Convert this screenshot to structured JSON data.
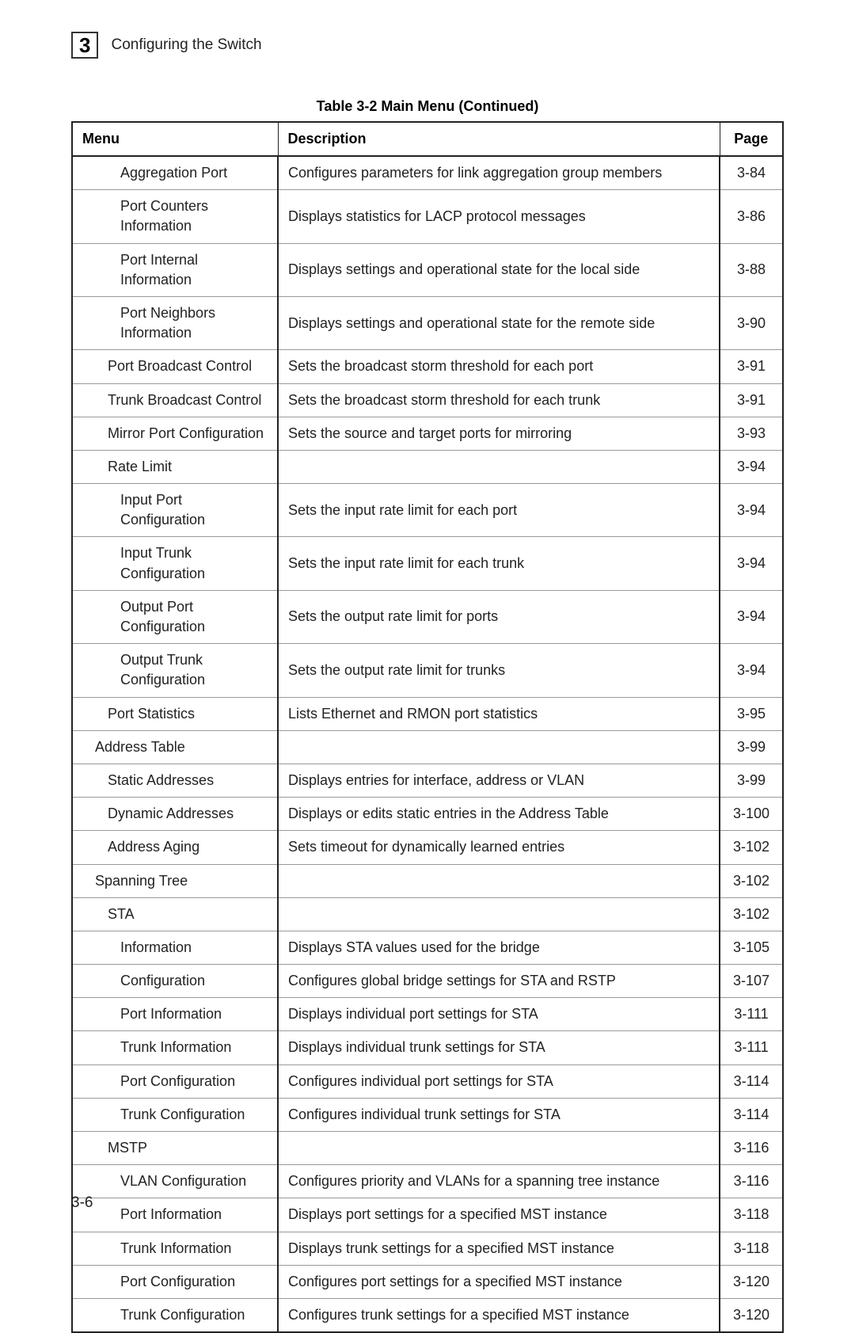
{
  "header": {
    "chapter_number": "3",
    "title": "Configuring the Switch"
  },
  "table": {
    "caption": "Table 3-2  Main Menu (Continued)",
    "columns": {
      "menu": "Menu",
      "description": "Description",
      "page": "Page"
    },
    "rows": [
      {
        "menu": "Aggregation Port",
        "indent": 3,
        "description": "Configures parameters for link aggregation group members",
        "page": "3-84"
      },
      {
        "menu": "Port Counters Information",
        "indent": 3,
        "description": "Displays statistics for LACP protocol messages",
        "page": "3-86"
      },
      {
        "menu": "Port Internal Information",
        "indent": 3,
        "description": "Displays settings and operational state for the local side",
        "page": "3-88"
      },
      {
        "menu": "Port Neighbors Information",
        "indent": 3,
        "description": "Displays settings and operational state for the remote side",
        "page": "3-90"
      },
      {
        "menu": "Port Broadcast Control",
        "indent": 2,
        "description": "Sets the broadcast storm threshold for each port",
        "page": "3-91"
      },
      {
        "menu": "Trunk Broadcast Control",
        "indent": 2,
        "description": "Sets the broadcast storm threshold for each trunk",
        "page": "3-91"
      },
      {
        "menu": "Mirror Port Configuration",
        "indent": 2,
        "description": "Sets the source and target ports for mirroring",
        "page": "3-93"
      },
      {
        "menu": "Rate Limit",
        "indent": 2,
        "description": "",
        "page": "3-94"
      },
      {
        "menu": "Input Port Configuration",
        "indent": 3,
        "description": "Sets the input rate limit for each port",
        "page": "3-94"
      },
      {
        "menu": "Input Trunk Configuration",
        "indent": 3,
        "description": "Sets the input rate limit for each trunk",
        "page": "3-94"
      },
      {
        "menu": "Output Port Configuration",
        "indent": 3,
        "description": "Sets the output rate limit for ports",
        "page": "3-94"
      },
      {
        "menu": "Output Trunk Configuration",
        "indent": 3,
        "description": "Sets the output rate limit for trunks",
        "page": "3-94"
      },
      {
        "menu": "Port Statistics",
        "indent": 2,
        "description": "Lists Ethernet and RMON port statistics",
        "page": "3-95"
      },
      {
        "menu": "Address Table",
        "indent": 1,
        "description": "",
        "page": "3-99"
      },
      {
        "menu": "Static Addresses",
        "indent": 2,
        "description": "Displays entries for interface, address or VLAN",
        "page": "3-99"
      },
      {
        "menu": "Dynamic Addresses",
        "indent": 2,
        "description": "Displays or edits static entries in the Address Table",
        "page": "3-100"
      },
      {
        "menu": "Address Aging",
        "indent": 2,
        "description": "Sets timeout for dynamically learned entries",
        "page": "3-102"
      },
      {
        "menu": "Spanning Tree",
        "indent": 1,
        "description": "",
        "page": "3-102"
      },
      {
        "menu": "STA",
        "indent": 2,
        "description": "",
        "page": "3-102"
      },
      {
        "menu": "Information",
        "indent": 3,
        "description": "Displays STA values used for the bridge",
        "page": "3-105"
      },
      {
        "menu": "Configuration",
        "indent": 3,
        "description": "Configures global bridge settings for STA and RSTP",
        "page": "3-107"
      },
      {
        "menu": "Port Information",
        "indent": 3,
        "description": "Displays individual port settings for STA",
        "page": "3-111"
      },
      {
        "menu": "Trunk Information",
        "indent": 3,
        "description": "Displays individual trunk settings for STA",
        "page": "3-111"
      },
      {
        "menu": "Port Configuration",
        "indent": 3,
        "description": "Configures individual port settings for STA",
        "page": "3-114"
      },
      {
        "menu": "Trunk Configuration",
        "indent": 3,
        "description": "Configures individual trunk settings for STA",
        "page": "3-114"
      },
      {
        "menu": "MSTP",
        "indent": 2,
        "description": "",
        "page": "3-116"
      },
      {
        "menu": "VLAN Configuration",
        "indent": 3,
        "description": "Configures priority and VLANs for a spanning tree instance",
        "page": "3-116"
      },
      {
        "menu": "Port Information",
        "indent": 3,
        "description": "Displays port settings for a specified MST instance",
        "page": "3-118"
      },
      {
        "menu": "Trunk Information",
        "indent": 3,
        "description": "Displays trunk settings for a specified MST instance",
        "page": "3-118"
      },
      {
        "menu": "Port Configuration",
        "indent": 3,
        "description": "Configures port settings for a specified MST instance",
        "page": "3-120"
      },
      {
        "menu": "Trunk Configuration",
        "indent": 3,
        "description": "Configures trunk settings for a specified MST instance",
        "page": "3-120"
      }
    ]
  },
  "footer": {
    "page_number": "3-6"
  }
}
